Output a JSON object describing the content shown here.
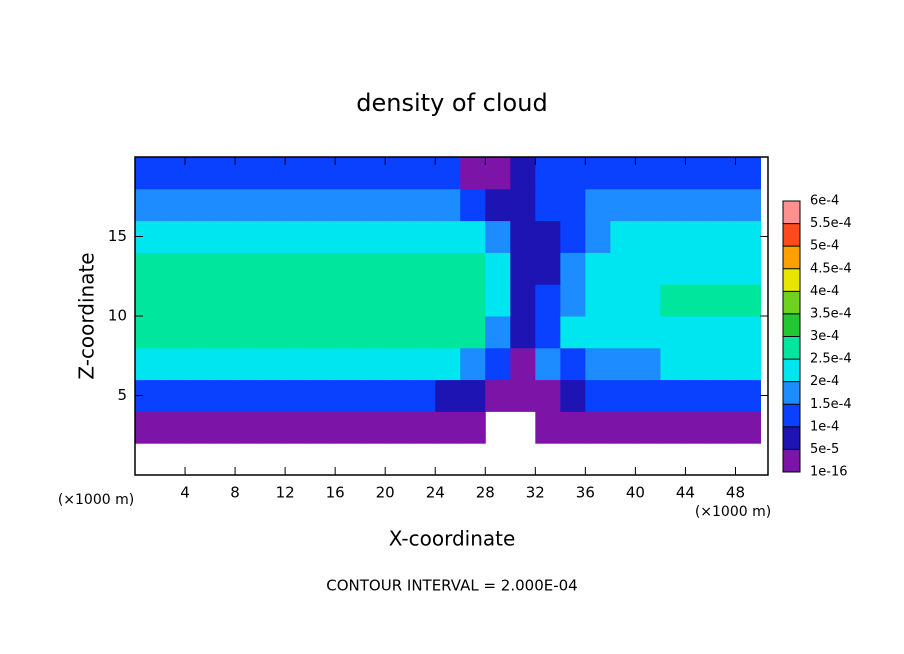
{
  "chart_data": {
    "type": "heatmap",
    "title": "density of cloud",
    "x_label": "X-coordinate",
    "y_label": "Z-coordinate",
    "x_unit": "(×1000 m)",
    "y_unit": "(×1000 m)",
    "footnote": "CONTOUR INTERVAL = 2.000E-04",
    "xlim": [
      0,
      50.6
    ],
    "ylim": [
      0,
      20
    ],
    "xticks": [
      4,
      8,
      12,
      16,
      20,
      24,
      28,
      32,
      36,
      40,
      44,
      48
    ],
    "yticks": [
      5,
      10,
      15
    ],
    "x": [
      1,
      3,
      5,
      7,
      9,
      11,
      13,
      15,
      17,
      19,
      21,
      23,
      25,
      27,
      29,
      31,
      33,
      35,
      37,
      39,
      41,
      43,
      45,
      47,
      49
    ],
    "z": [
      1,
      3,
      5,
      7,
      9,
      11,
      13,
      15,
      17,
      19
    ],
    "values": [
      [
        null,
        null,
        null,
        null,
        null,
        null,
        null,
        null,
        null,
        null,
        null,
        null,
        null,
        null,
        null,
        null,
        null,
        null,
        null,
        null,
        null,
        null,
        null,
        null,
        null
      ],
      [
        3e-05,
        3e-05,
        3e-05,
        3e-05,
        3e-05,
        3e-05,
        3e-05,
        3e-05,
        3e-05,
        3e-05,
        3e-05,
        3e-05,
        3e-05,
        3e-05,
        null,
        null,
        3e-05,
        3e-05,
        3e-05,
        3e-05,
        3e-05,
        3e-05,
        3e-05,
        3e-05,
        3e-05
      ],
      [
        0.00012,
        0.00012,
        0.00012,
        0.00012,
        0.00012,
        0.00012,
        0.00012,
        0.00012,
        0.00012,
        0.00012,
        0.00012,
        0.00012,
        8e-05,
        8e-05,
        4e-05,
        4e-05,
        4e-05,
        8e-05,
        0.00012,
        0.00012,
        0.00012,
        0.00012,
        0.00012,
        0.00012,
        0.00012
      ],
      [
        0.0002,
        0.0002,
        0.0002,
        0.0002,
        0.0002,
        0.0002,
        0.0002,
        0.0002,
        0.0002,
        0.0002,
        0.0002,
        0.0002,
        0.0002,
        0.00015,
        0.0001,
        4e-05,
        0.00016,
        0.00014,
        0.00018,
        0.00018,
        0.00018,
        0.0002,
        0.0002,
        0.0002,
        0.0002
      ],
      [
        0.00026,
        0.00026,
        0.00026,
        0.00026,
        0.00026,
        0.00026,
        0.00026,
        0.00026,
        0.00026,
        0.00026,
        0.00026,
        0.00026,
        0.00026,
        0.00026,
        0.00018,
        5e-05,
        0.00014,
        0.00021,
        0.00021,
        0.00021,
        0.00022,
        0.00024,
        0.00024,
        0.00024,
        0.00024
      ],
      [
        0.00026,
        0.00026,
        0.00026,
        0.00026,
        0.00026,
        0.00026,
        0.00026,
        0.00026,
        0.00026,
        0.00026,
        0.00026,
        0.00026,
        0.00026,
        0.00026,
        0.0002,
        5e-05,
        0.0001,
        0.00018,
        0.00021,
        0.00021,
        0.00021,
        0.00025,
        0.00025,
        0.00025,
        0.00025
      ],
      [
        0.00026,
        0.00026,
        0.00026,
        0.00026,
        0.00026,
        0.00026,
        0.00026,
        0.00026,
        0.00026,
        0.00026,
        0.00026,
        0.00026,
        0.00026,
        0.00026,
        0.0002,
        6e-05,
        8e-05,
        0.00015,
        0.0002,
        0.00021,
        0.0002,
        0.00024,
        0.00024,
        0.00024,
        0.00024
      ],
      [
        0.00022,
        0.00022,
        0.00022,
        0.00022,
        0.00022,
        0.00022,
        0.00022,
        0.00022,
        0.00022,
        0.0002,
        0.00021,
        0.00021,
        0.00021,
        0.00021,
        0.00015,
        6e-05,
        8e-05,
        0.00012,
        0.00018,
        0.0002,
        0.00021,
        0.00022,
        0.00022,
        0.00022,
        0.00022
      ],
      [
        0.00018,
        0.00018,
        0.00018,
        0.00018,
        0.00018,
        0.00018,
        0.00018,
        0.00018,
        0.00018,
        0.00015,
        0.00015,
        0.00015,
        0.00015,
        0.00012,
        6e-05,
        7e-05,
        0.0001,
        0.00013,
        0.00016,
        0.00016,
        0.00016,
        0.00016,
        0.00016,
        0.00016,
        0.00016
      ],
      [
        0.00012,
        0.00012,
        0.00012,
        0.00012,
        0.00012,
        0.00012,
        0.00012,
        0.00012,
        0.00012,
        0.00012,
        0.00012,
        0.00012,
        0.0001,
        4e-05,
        3e-05,
        6e-05,
        0.0001,
        0.00011,
        0.00011,
        0.00011,
        0.00011,
        0.00011,
        0.00011,
        0.00011,
        0.00011
      ]
    ],
    "colorbar_ticks": [
      {
        "value": 1e-16,
        "label": "1e-16"
      },
      {
        "value": 5e-05,
        "label": "5e-5"
      },
      {
        "value": 0.0001,
        "label": "1e-4"
      },
      {
        "value": 0.00015,
        "label": "1.5e-4"
      },
      {
        "value": 0.0002,
        "label": "2e-4"
      },
      {
        "value": 0.00025,
        "label": "2.5e-4"
      },
      {
        "value": 0.0003,
        "label": "3e-4"
      },
      {
        "value": 0.00035,
        "label": "3.5e-4"
      },
      {
        "value": 0.0004,
        "label": "4e-4"
      },
      {
        "value": 0.00045,
        "label": "4.5e-4"
      },
      {
        "value": 0.0005,
        "label": "5e-4"
      },
      {
        "value": 0.00055,
        "label": "5.5e-4"
      },
      {
        "value": 0.0006,
        "label": "6e-4"
      }
    ],
    "colors": [
      "#7d14a8",
      "#1e14b4",
      "#0a40ff",
      "#1c8cff",
      "#00e6f0",
      "#00e69c",
      "#22c832",
      "#6ed21e",
      "#e6e600",
      "#ffa000",
      "#ff4a1e",
      "#ff9090"
    ]
  }
}
